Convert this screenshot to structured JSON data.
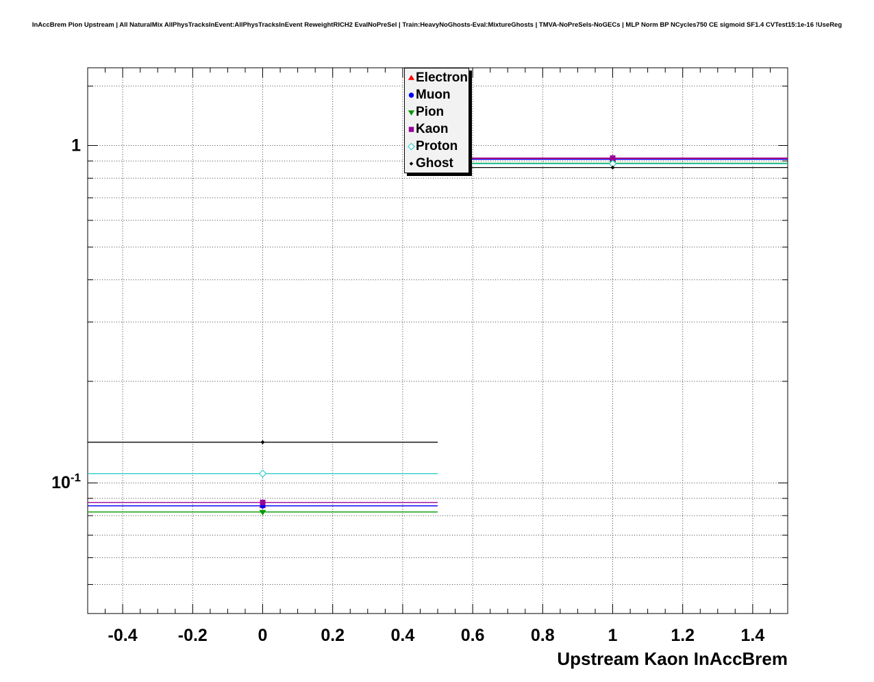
{
  "page": {
    "background": "#ffffff",
    "title": "InAccBrem Pion Upstream | All NaturalMix AllPhysTracksInEvent:AllPhysTracksInEvent ReweightRICH2 EvalNoPreSel | Train:HeavyNoGhosts-Eval:MixtureGhosts | TMVA-NoPreSels-NoGECs | MLP Norm BP NCycles750 CE sigmoid SF1.4 CVTest15:1e-16 !UseReg"
  },
  "legend": {
    "position": "top-center",
    "entries": [
      {
        "label": "Electron",
        "marker": "triangle-up",
        "color": "#ff0000"
      },
      {
        "label": "Muon",
        "marker": "circle",
        "color": "#0000ff"
      },
      {
        "label": "Pion",
        "marker": "triangle-down",
        "color": "#009900"
      },
      {
        "label": "Kaon",
        "marker": "square",
        "color": "#990099"
      },
      {
        "label": "Proton",
        "marker": "diamond",
        "color": "#33cccc"
      },
      {
        "label": "Ghost",
        "marker": "diamond-small",
        "color": "#000000"
      }
    ]
  },
  "chart_data": {
    "type": "line",
    "title": "InAccBrem Pion Upstream | All NaturalMix AllPhysTracksInEvent:AllPhysTracksInEvent ReweightRICH2 EvalNoPreSel | Train:HeavyNoGhosts-Eval:MixtureGhosts | TMVA-NoPreSels-NoGECs | MLP Norm BP NCycles750 CE sigmoid SF1.4 CVTest15:1e-16 !UseReg",
    "xlabel": "Upstream Kaon InAccBrem",
    "ylabel": "",
    "x_range": [
      -0.5,
      1.5
    ],
    "y_range": [
      0.041,
      1.7
    ],
    "y_scale": "log",
    "grid": true,
    "legend_position": "top-center",
    "x_major_ticks": [
      -0.4,
      -0.2,
      0,
      0.2,
      0.4,
      0.6,
      0.8,
      1,
      1.2,
      1.4
    ],
    "x_tick_labels": [
      "-0.4",
      "-0.2",
      "0",
      "0.2",
      "0.4",
      "0.6",
      "0.8",
      "1",
      "1.2",
      "1.4"
    ],
    "x_minor_step": 0.05,
    "y_major_ticks": [
      {
        "value": 1,
        "label": "1",
        "sup": ""
      },
      {
        "value": 0.1,
        "label": "10",
        "sup": "-1"
      }
    ],
    "y_minor_ticks": [
      0.05,
      0.06,
      0.07,
      0.08,
      0.09,
      0.2,
      0.3,
      0.4,
      0.5,
      0.6,
      0.7,
      0.8,
      0.9,
      1.5
    ],
    "bin_centers": [
      0,
      1
    ],
    "bin_half_width": 0.5,
    "series": [
      {
        "name": "Electron",
        "color": "#ff0000",
        "marker": "triangle-up",
        "values": [
          0.0855,
          0.916
        ]
      },
      {
        "name": "Muon",
        "color": "#0000ff",
        "marker": "circle",
        "values": [
          0.0855,
          0.91
        ]
      },
      {
        "name": "Pion",
        "color": "#009900",
        "marker": "triangle-down",
        "values": [
          0.082,
          0.886
        ]
      },
      {
        "name": "Kaon",
        "color": "#990099",
        "marker": "square",
        "values": [
          0.0875,
          0.918
        ]
      },
      {
        "name": "Proton",
        "color": "#33cccc",
        "marker": "diamond",
        "values": [
          0.1065,
          0.883
        ]
      },
      {
        "name": "Ghost",
        "color": "#000000",
        "marker": "diamond-small",
        "values": [
          0.132,
          0.861
        ]
      }
    ]
  }
}
